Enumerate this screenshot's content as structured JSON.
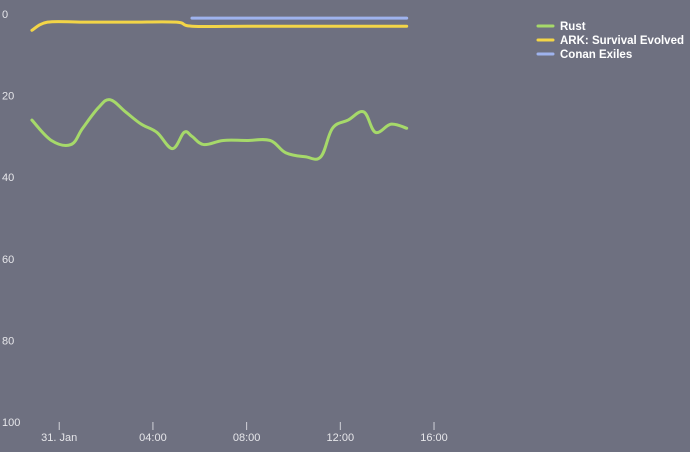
{
  "chart_data": {
    "type": "line",
    "title": "",
    "xlabel": "",
    "ylabel": "",
    "y_reversed": true,
    "ylim": [
      0,
      100
    ],
    "xlim": [
      "2018-01-30T22:40",
      "2018-01-31T19:30"
    ],
    "grid": false,
    "legend_position": "top-right",
    "y_ticks": [
      "0",
      "20",
      "40",
      "60",
      "80",
      "100"
    ],
    "x_ticks": [
      {
        "time": "2018-01-31T00:00",
        "label": "31. Jan"
      },
      {
        "time": "2018-01-31T04:00",
        "label": "04:00"
      },
      {
        "time": "2018-01-31T08:00",
        "label": "08:00"
      },
      {
        "time": "2018-01-31T12:00",
        "label": "12:00"
      },
      {
        "time": "2018-01-31T16:00",
        "label": "16:00"
      }
    ],
    "series": [
      {
        "name": "Rust",
        "color": "#a6d96a",
        "points": [
          [
            "2018-01-30T22:50",
            26
          ],
          [
            "2018-01-30T23:40",
            31
          ],
          [
            "2018-01-31T00:30",
            32
          ],
          [
            "2018-01-31T01:00",
            28
          ],
          [
            "2018-01-31T01:40",
            23
          ],
          [
            "2018-01-31T02:10",
            21
          ],
          [
            "2018-01-31T02:50",
            24
          ],
          [
            "2018-01-31T03:30",
            27
          ],
          [
            "2018-01-31T04:10",
            29
          ],
          [
            "2018-01-31T04:50",
            33
          ],
          [
            "2018-01-31T05:20",
            29
          ],
          [
            "2018-01-31T05:40",
            30
          ],
          [
            "2018-01-31T06:10",
            32
          ],
          [
            "2018-01-31T07:00",
            31
          ],
          [
            "2018-01-31T08:00",
            31
          ],
          [
            "2018-01-31T09:00",
            31
          ],
          [
            "2018-01-31T09:40",
            34
          ],
          [
            "2018-01-31T10:30",
            35
          ],
          [
            "2018-01-31T11:10",
            35
          ],
          [
            "2018-01-31T11:40",
            28
          ],
          [
            "2018-01-31T12:20",
            26
          ],
          [
            "2018-01-31T13:00",
            24
          ],
          [
            "2018-01-31T13:30",
            29
          ],
          [
            "2018-01-31T14:10",
            27
          ],
          [
            "2018-01-31T14:50",
            28
          ]
        ]
      },
      {
        "name": "ARK: Survival Evolved",
        "color": "#f3d547",
        "points": [
          [
            "2018-01-30T22:50",
            4
          ],
          [
            "2018-01-30T23:30",
            2
          ],
          [
            "2018-01-31T01:00",
            2
          ],
          [
            "2018-01-31T03:00",
            2
          ],
          [
            "2018-01-31T05:00",
            2
          ],
          [
            "2018-01-31T05:40",
            3
          ],
          [
            "2018-01-31T08:00",
            3
          ],
          [
            "2018-01-31T11:00",
            3
          ],
          [
            "2018-01-31T14:50",
            3
          ]
        ]
      },
      {
        "name": "Conan Exiles",
        "color": "#9fb3ee",
        "points": [
          [
            "2018-01-31T05:40",
            1
          ],
          [
            "2018-01-31T09:00",
            1
          ],
          [
            "2018-01-31T14:50",
            1
          ]
        ]
      }
    ]
  }
}
